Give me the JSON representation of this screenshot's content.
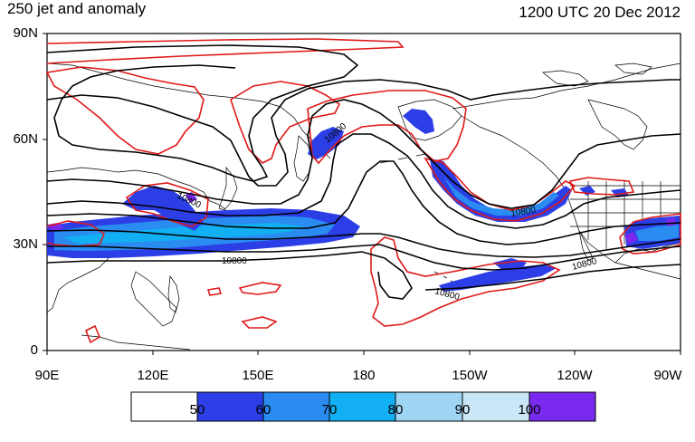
{
  "title": "250 jet and anomaly",
  "timestamp": "1200 UTC 20 Dec 2012",
  "lat_labels": [
    "90N",
    "60N",
    "30N",
    "0"
  ],
  "lon_labels": [
    "90E",
    "120E",
    "150E",
    "180",
    "150W",
    "120W",
    "90W"
  ],
  "contour_labels": [
    "10800",
    "10800",
    "10800",
    "10800",
    "10800",
    "10800"
  ],
  "colorbar": {
    "labels": [
      "50",
      "60",
      "70",
      "80",
      "90",
      "100"
    ],
    "colors": [
      "#ffffff",
      "#2c3ee6",
      "#2a8cf0",
      "#12b0f2",
      "#9fd6f4",
      "#c9e7f7",
      "#7a2aee"
    ]
  },
  "colors": {
    "height_contour": "#000000",
    "anomaly_contour": "#e01818",
    "coastline": "#000000"
  }
}
